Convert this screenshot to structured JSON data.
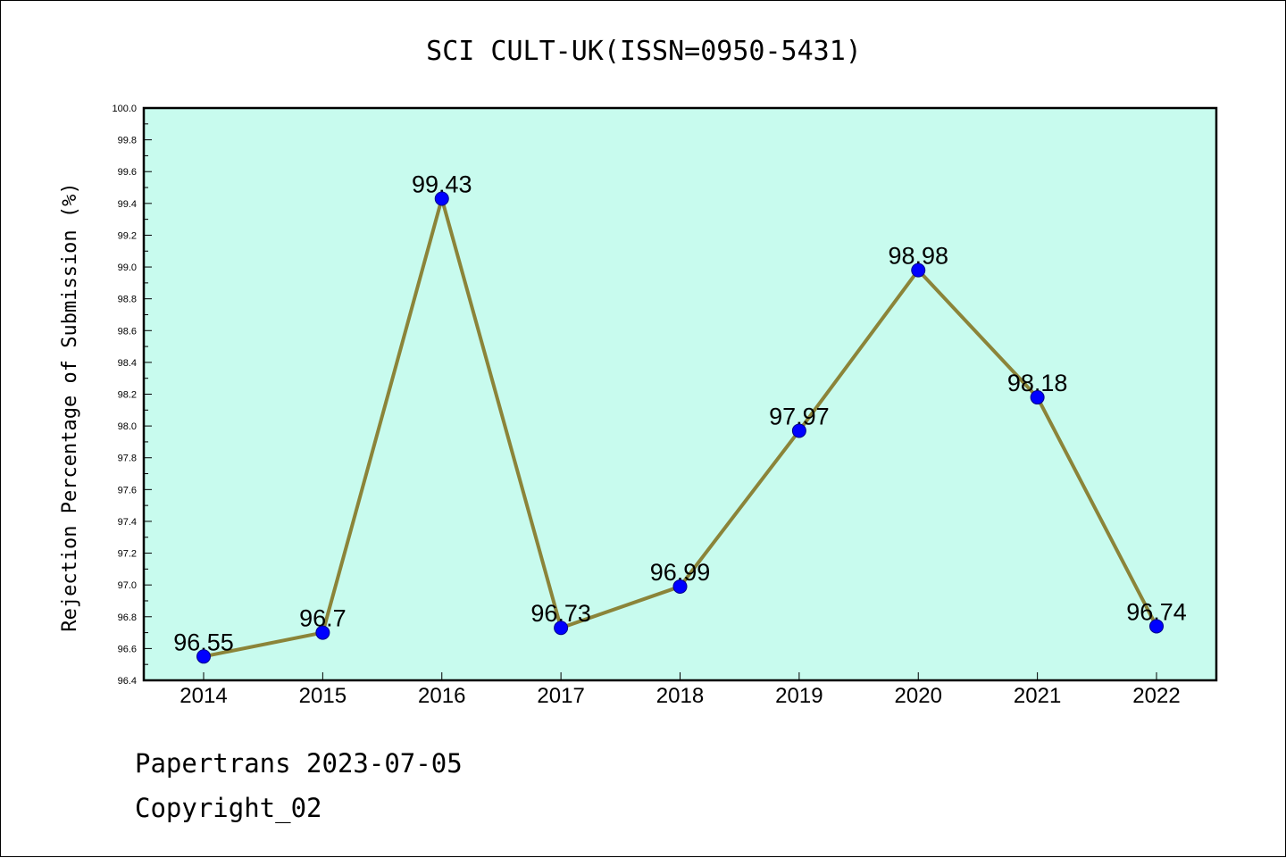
{
  "chart_data": {
    "type": "line",
    "title": "SCI CULT-UK(ISSN=0950-5431)",
    "ylabel": "Rejection Percentage of Submission (%)",
    "xlabel": "",
    "categories": [
      "2014",
      "2015",
      "2016",
      "2017",
      "2018",
      "2019",
      "2020",
      "2021",
      "2022"
    ],
    "values": [
      96.55,
      96.7,
      99.43,
      96.73,
      96.99,
      97.97,
      98.98,
      98.18,
      96.74
    ],
    "data_labels": [
      "96.55",
      "96.7",
      "99.43",
      "96.73",
      "96.99",
      "97.97",
      "98.98",
      "98.18",
      "96.74"
    ],
    "ylim": [
      96.4,
      100.0
    ],
    "yticks": [
      "96.4",
      "96.6",
      "96.8",
      "97.0",
      "97.2",
      "97.4",
      "97.6",
      "97.8",
      "98.0",
      "98.2",
      "98.4",
      "98.6",
      "98.8",
      "99.0",
      "99.2",
      "99.4",
      "99.6",
      "99.8",
      "100.0"
    ],
    "grid": false,
    "colors": {
      "plot_background": "#c8fbee",
      "line": "#8b8439",
      "marker": "#0000ff"
    }
  },
  "footer": {
    "line1": "Papertrans 2023-07-05",
    "line2": "Copyright_02"
  }
}
